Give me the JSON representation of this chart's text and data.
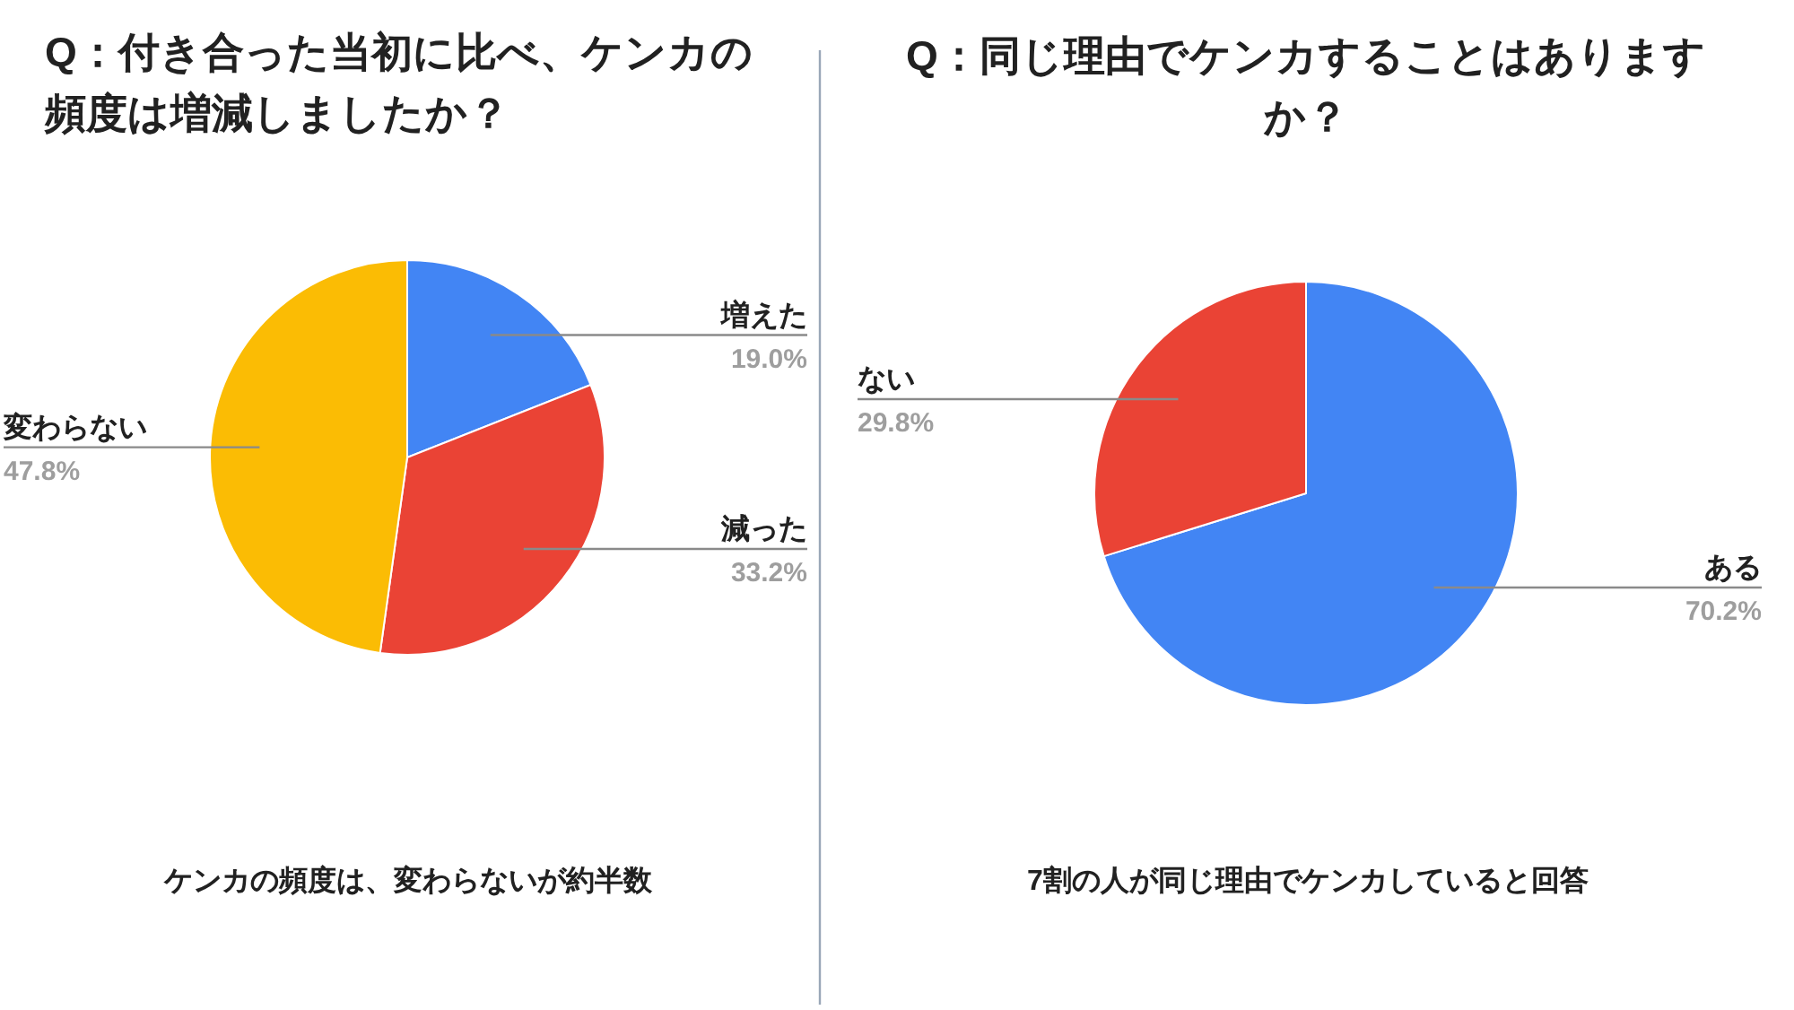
{
  "chart_data": [
    {
      "type": "pie",
      "title": "Q：付き合った当初に比べ、ケンカの頻度は増減しましたか？",
      "categories": [
        "増えた",
        "減った",
        "変わらない"
      ],
      "values": [
        19.0,
        33.2,
        47.8
      ],
      "colors": [
        "#4285f4",
        "#ea4335",
        "#fbbc04"
      ],
      "value_labels": [
        "19.0%",
        "33.2%",
        "47.8%"
      ],
      "annotations": [
        "ケンカの頻度は、変わらないが約半数"
      ]
    },
    {
      "type": "pie",
      "title": "Q：同じ理由でケンカすることはありますか？",
      "categories": [
        "ある",
        "ない"
      ],
      "values": [
        70.2,
        29.8
      ],
      "colors": [
        "#4285f4",
        "#ea4335"
      ],
      "value_labels": [
        "70.2%",
        "29.8%"
      ],
      "annotations": [
        "7割の人が同じ理由でケンカしていると回答"
      ]
    }
  ]
}
